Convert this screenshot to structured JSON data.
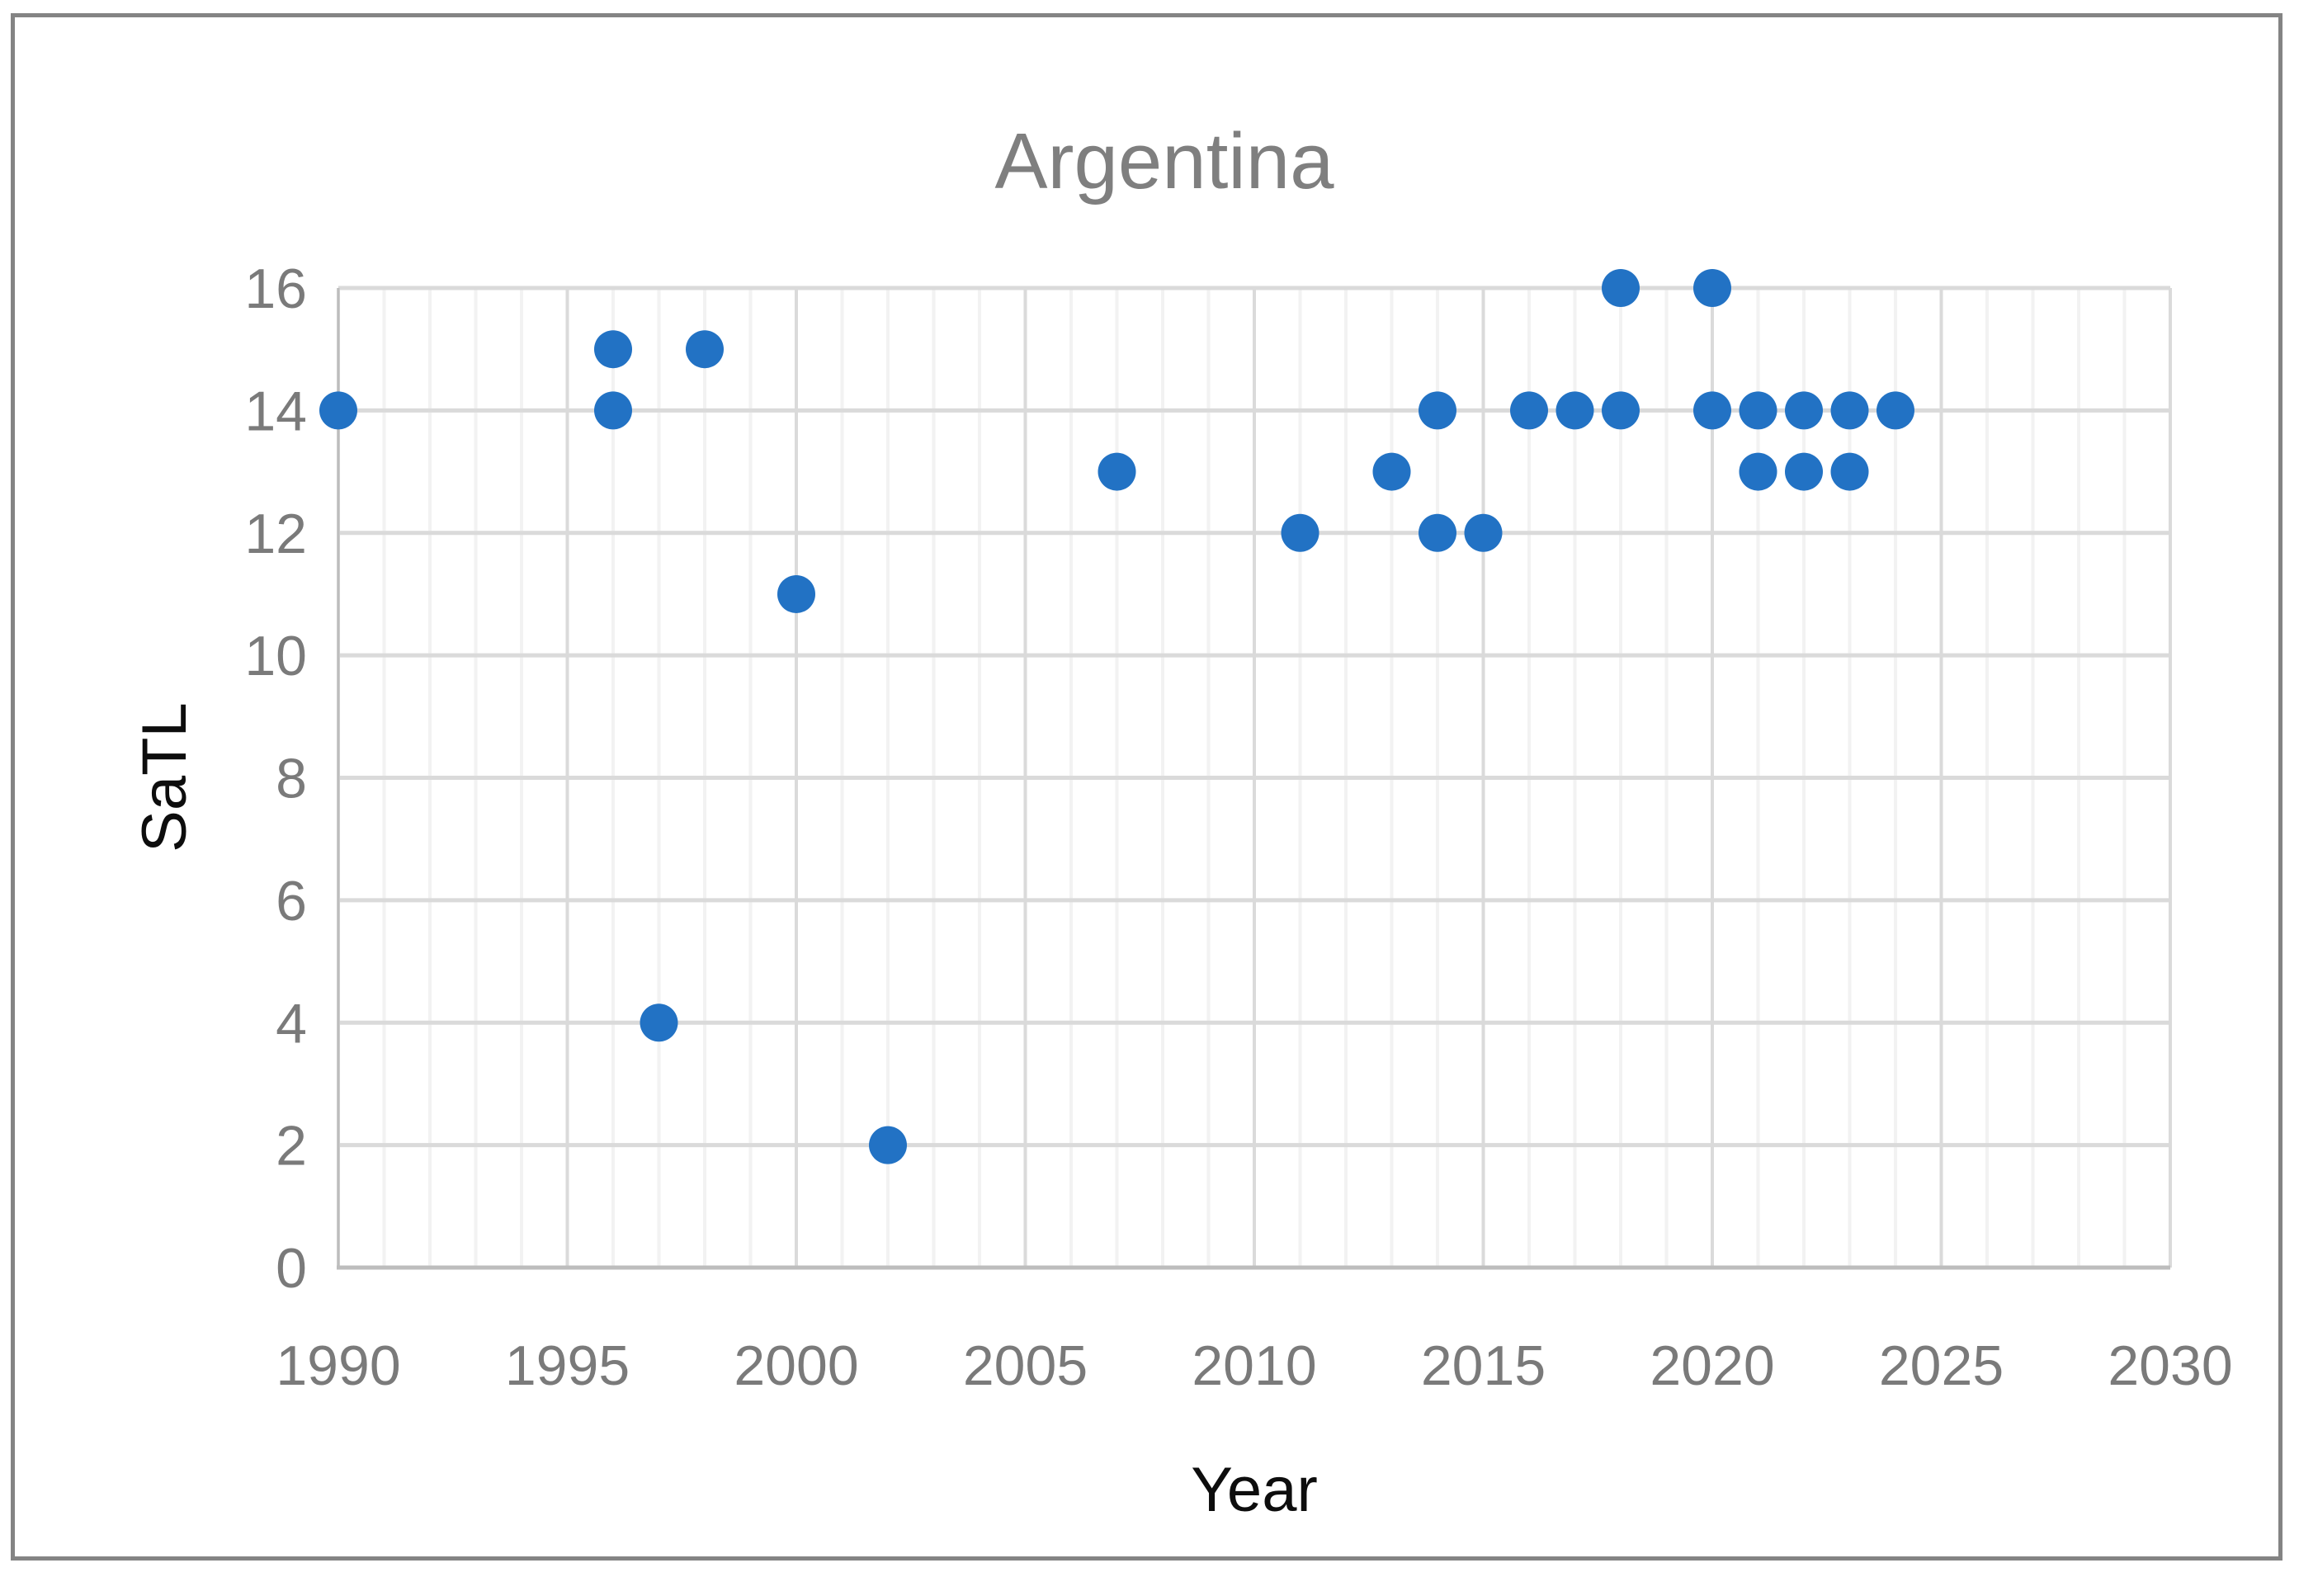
{
  "chart_data": {
    "type": "scatter",
    "title": "Argentina",
    "xlabel": "Year",
    "ylabel": "SaTL",
    "xlim": [
      1990,
      2030
    ],
    "ylim": [
      0,
      16
    ],
    "x_ticks": [
      1990,
      1995,
      2000,
      2005,
      2010,
      2015,
      2020,
      2025,
      2030
    ],
    "y_ticks": [
      0,
      2,
      4,
      6,
      8,
      10,
      12,
      14,
      16
    ],
    "x_minor_step_years": 1,
    "x_major_step_years": 5,
    "y_gridline_step": 2,
    "grid": "horizontal major gridlines every 2 units; vertical minor gridlines every year, major every 5 years",
    "legend_position": "none",
    "marker_diameter_px": 46,
    "points": [
      [
        1990,
        14
      ],
      [
        1996,
        14
      ],
      [
        1996,
        15
      ],
      [
        1997,
        4
      ],
      [
        1998,
        15
      ],
      [
        2000,
        11
      ],
      [
        2002,
        2
      ],
      [
        2007,
        13
      ],
      [
        2011,
        12
      ],
      [
        2013,
        13
      ],
      [
        2014,
        12
      ],
      [
        2014,
        14
      ],
      [
        2015,
        12
      ],
      [
        2016,
        14
      ],
      [
        2017,
        14
      ],
      [
        2018,
        14
      ],
      [
        2018,
        16
      ],
      [
        2020,
        14
      ],
      [
        2020,
        16
      ],
      [
        2021,
        13
      ],
      [
        2021,
        14
      ],
      [
        2022,
        13
      ],
      [
        2022,
        14
      ],
      [
        2023,
        13
      ],
      [
        2023,
        14
      ],
      [
        2024,
        14
      ]
    ],
    "colors": {
      "marker": "#2272C4",
      "title_text": "#7F7F7F",
      "tick_text": "#7A7A7A",
      "axis_title_text": "#0D0D0D",
      "grid_major": "#DADADA",
      "grid_minor": "#F2F2F2",
      "axis_line": "#BDBDBD",
      "chart_border": "#848484",
      "background": "#FFFFFF"
    }
  }
}
